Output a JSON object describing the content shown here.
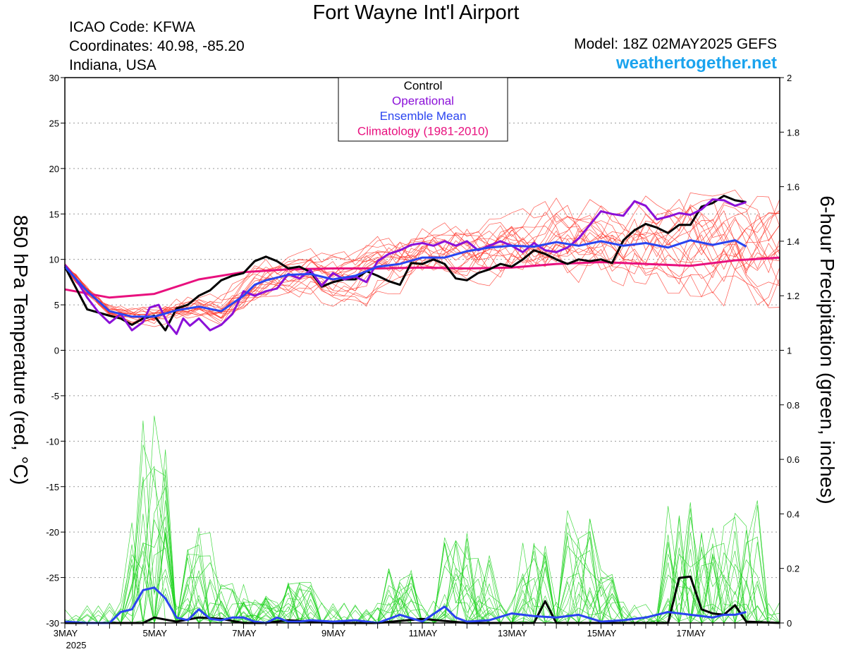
{
  "header": {
    "title": "Fort Wayne Int'l Airport",
    "icao": "ICAO Code: KFWA",
    "coords": "Coordinates: 40.98, -85.20",
    "region": "Indiana, USA",
    "model": "Model: 18Z 02MAY2025 GEFS",
    "site": "weathertogether.net"
  },
  "chart_data": {
    "type": "line",
    "x_unit": "days from 3MAY 2025 00Z",
    "xlim": [
      0,
      16
    ],
    "x_tick_labels": [
      {
        "day": 0,
        "label": "3MAY"
      },
      {
        "day": 2,
        "label": "5MAY"
      },
      {
        "day": 4,
        "label": "7MAY"
      },
      {
        "day": 6,
        "label": "9MAY"
      },
      {
        "day": 8,
        "label": "11MAY"
      },
      {
        "day": 10,
        "label": "13MAY"
      },
      {
        "day": 12,
        "label": "15MAY"
      },
      {
        "day": 14,
        "label": "17MAY"
      }
    ],
    "x_year_label": "2025",
    "ylabel_left": "850 hPa Temperature (red, °C)",
    "ylabel_right": "6-hour Precipitation (green, inches)",
    "ylim_left": [
      -30,
      30
    ],
    "ylim_right": [
      0,
      2
    ],
    "y_ticks_left": [
      30,
      25,
      20,
      15,
      10,
      5,
      0,
      -5,
      -10,
      -15,
      -20,
      -25,
      -30
    ],
    "y_ticks_right": [
      "2",
      "1.8",
      "1.6",
      "1.4",
      "1.2",
      "1",
      "0.8",
      "0.6",
      "0.4",
      "0.2",
      "0"
    ],
    "grid": "horizontal dotted",
    "legend": {
      "placement": "top-center",
      "entries": [
        {
          "label": "Control",
          "color": "#000000"
        },
        {
          "label": "Operational",
          "color": "#8b10d8"
        },
        {
          "label": "Ensemble Mean",
          "color": "#2a44f0"
        },
        {
          "label": "Climatology (1981-2010)",
          "color": "#e8107e"
        }
      ]
    },
    "colors": {
      "members_temp": "#ff3b30",
      "members_precip": "#22d422"
    },
    "series": [
      {
        "id": "control_temp",
        "color": "#000000",
        "axis": "left",
        "points": [
          [
            0,
            9.2
          ],
          [
            0.5,
            4.5
          ],
          [
            1,
            3.8
          ],
          [
            1.25,
            3.5
          ],
          [
            1.5,
            2.8
          ],
          [
            1.75,
            3.5
          ],
          [
            2,
            3.8
          ],
          [
            2.25,
            2.2
          ],
          [
            2.5,
            4.6
          ],
          [
            2.75,
            5
          ],
          [
            3,
            6
          ],
          [
            3.25,
            6.6
          ],
          [
            3.5,
            7.7
          ],
          [
            3.75,
            8.2
          ],
          [
            4,
            8.5
          ],
          [
            4.25,
            9.8
          ],
          [
            4.5,
            10.3
          ],
          [
            4.75,
            9.8
          ],
          [
            5,
            9
          ],
          [
            5.25,
            9.2
          ],
          [
            5.5,
            8.6
          ],
          [
            5.75,
            7
          ],
          [
            6,
            7.5
          ],
          [
            6.25,
            7.8
          ],
          [
            6.5,
            7.8
          ],
          [
            6.75,
            8.7
          ],
          [
            7,
            8.2
          ],
          [
            7.25,
            7.6
          ],
          [
            7.5,
            7.2
          ],
          [
            7.75,
            9.6
          ],
          [
            8,
            9.5
          ],
          [
            8.25,
            10
          ],
          [
            8.5,
            9.5
          ],
          [
            8.75,
            7.9
          ],
          [
            9,
            7.7
          ],
          [
            9.25,
            8.5
          ],
          [
            9.5,
            8.9
          ],
          [
            9.75,
            9.5
          ],
          [
            10,
            9.2
          ],
          [
            10.25,
            10
          ],
          [
            10.5,
            11
          ],
          [
            10.75,
            10.6
          ],
          [
            11,
            10
          ],
          [
            11.25,
            9.5
          ],
          [
            11.5,
            10
          ],
          [
            11.75,
            9.8
          ],
          [
            12,
            10
          ],
          [
            12.25,
            9.6
          ],
          [
            12.5,
            12.1
          ],
          [
            12.75,
            13.2
          ],
          [
            13,
            13.9
          ],
          [
            13.25,
            13.5
          ],
          [
            13.5,
            12.9
          ],
          [
            13.75,
            13.8
          ],
          [
            14,
            13.8
          ],
          [
            14.25,
            15.8
          ],
          [
            14.5,
            16.2
          ],
          [
            14.75,
            17
          ],
          [
            15,
            16.5
          ],
          [
            15.25,
            16.3
          ]
        ]
      },
      {
        "id": "operational_temp",
        "color": "#8b10d8",
        "axis": "left",
        "points": [
          [
            0,
            9.4
          ],
          [
            0.25,
            7.8
          ],
          [
            0.5,
            5.8
          ],
          [
            0.75,
            4.2
          ],
          [
            1,
            3
          ],
          [
            1.25,
            4
          ],
          [
            1.5,
            2.2
          ],
          [
            1.75,
            3.1
          ],
          [
            1.9,
            4.7
          ],
          [
            2.1,
            5
          ],
          [
            2.3,
            3
          ],
          [
            2.5,
            1.8
          ],
          [
            2.65,
            3.5
          ],
          [
            2.8,
            2.7
          ],
          [
            3,
            3.5
          ],
          [
            3.25,
            2.2
          ],
          [
            3.5,
            2.8
          ],
          [
            3.75,
            4
          ],
          [
            4,
            6.5
          ],
          [
            4.25,
            6
          ],
          [
            4.5,
            6.5
          ],
          [
            4.75,
            6.8
          ],
          [
            5,
            8.4
          ],
          [
            5.25,
            7.9
          ],
          [
            5.5,
            8.8
          ],
          [
            5.75,
            7.1
          ],
          [
            6,
            8.5
          ],
          [
            6.25,
            7.8
          ],
          [
            6.5,
            8.1
          ],
          [
            6.75,
            7.5
          ],
          [
            7,
            9.8
          ],
          [
            7.25,
            10.6
          ],
          [
            7.5,
            11
          ],
          [
            7.75,
            11.6
          ],
          [
            8,
            11.8
          ],
          [
            8.25,
            11.5
          ],
          [
            8.5,
            12
          ],
          [
            8.75,
            11.5
          ],
          [
            9,
            12
          ],
          [
            9.25,
            11
          ],
          [
            9.5,
            11.5
          ],
          [
            9.75,
            12
          ],
          [
            10,
            11.5
          ],
          [
            10.25,
            10.8
          ],
          [
            10.5,
            11.8
          ],
          [
            10.75,
            11
          ],
          [
            11,
            10.8
          ],
          [
            11.25,
            11.3
          ],
          [
            11.5,
            12.3
          ],
          [
            11.75,
            13.8
          ],
          [
            12,
            15.3
          ],
          [
            12.25,
            15
          ],
          [
            12.5,
            14.8
          ],
          [
            12.75,
            16.4
          ],
          [
            13,
            15.9
          ],
          [
            13.25,
            14.4
          ],
          [
            13.5,
            14.7
          ],
          [
            13.75,
            15.1
          ],
          [
            14,
            14.9
          ],
          [
            14.25,
            15.5
          ],
          [
            14.5,
            16.6
          ],
          [
            14.75,
            16.5
          ],
          [
            15,
            15.9
          ],
          [
            15.25,
            16.3
          ]
        ]
      },
      {
        "id": "ensemble_mean_temp",
        "color": "#2a44f0",
        "axis": "left",
        "points": [
          [
            0,
            9.2
          ],
          [
            0.5,
            6.5
          ],
          [
            1,
            4.3
          ],
          [
            1.5,
            3.7
          ],
          [
            2,
            3.7
          ],
          [
            2.5,
            4.4
          ],
          [
            3,
            4.8
          ],
          [
            3.5,
            4.3
          ],
          [
            4,
            6
          ],
          [
            4.25,
            7.2
          ],
          [
            4.5,
            7.7
          ],
          [
            5,
            8.3
          ],
          [
            5.5,
            8.4
          ],
          [
            6,
            7.8
          ],
          [
            6.5,
            8.2
          ],
          [
            7,
            9.2
          ],
          [
            7.5,
            9.5
          ],
          [
            8,
            10.2
          ],
          [
            8.5,
            10.2
          ],
          [
            9,
            10.9
          ],
          [
            9.5,
            11.3
          ],
          [
            10,
            11.5
          ],
          [
            10.5,
            11.4
          ],
          [
            11,
            11.9
          ],
          [
            11.5,
            11.5
          ],
          [
            12,
            12
          ],
          [
            12.5,
            11.5
          ],
          [
            13,
            11.8
          ],
          [
            13.5,
            11.3
          ],
          [
            14,
            12.1
          ],
          [
            14.5,
            11.6
          ],
          [
            15,
            12.1
          ],
          [
            15.25,
            11.4
          ]
        ]
      },
      {
        "id": "climatology_temp",
        "color": "#e8107e",
        "axis": "left",
        "points": [
          [
            0,
            6.7
          ],
          [
            1,
            5.8
          ],
          [
            2,
            6.2
          ],
          [
            3,
            7.8
          ],
          [
            4,
            8.6
          ],
          [
            5,
            8.9
          ],
          [
            6,
            9
          ],
          [
            7,
            9
          ],
          [
            8,
            9.1
          ],
          [
            9,
            9
          ],
          [
            10,
            9.1
          ],
          [
            11,
            9.5
          ],
          [
            12,
            9.7
          ],
          [
            13,
            9.5
          ],
          [
            14,
            9.3
          ],
          [
            15,
            9.9
          ],
          [
            16,
            10.2
          ]
        ]
      },
      {
        "id": "control_precip",
        "color": "#000000",
        "axis": "right",
        "points": [
          [
            0,
            0
          ],
          [
            1.75,
            0
          ],
          [
            2,
            0.02
          ],
          [
            2.5,
            0.005
          ],
          [
            3,
            0.02
          ],
          [
            3.5,
            0.015
          ],
          [
            4,
            0
          ],
          [
            4.5,
            0
          ],
          [
            5,
            0.01
          ],
          [
            6,
            0
          ],
          [
            7,
            0
          ],
          [
            8,
            0.015
          ],
          [
            9,
            0
          ],
          [
            10,
            0
          ],
          [
            10.5,
            0
          ],
          [
            10.75,
            0.08
          ],
          [
            11,
            0
          ],
          [
            12,
            0
          ],
          [
            13,
            0
          ],
          [
            13.5,
            0
          ],
          [
            13.75,
            0.165
          ],
          [
            14,
            0.17
          ],
          [
            14.25,
            0.05
          ],
          [
            14.5,
            0.035
          ],
          [
            14.75,
            0.03
          ],
          [
            15,
            0.065
          ],
          [
            15.25,
            0.005
          ],
          [
            16,
            0
          ]
        ]
      },
      {
        "id": "ensemble_mean_precip",
        "color": "#2a44f0",
        "axis": "right",
        "points": [
          [
            0,
            0.005
          ],
          [
            0.5,
            0
          ],
          [
            1,
            0
          ],
          [
            1.25,
            0.04
          ],
          [
            1.5,
            0.05
          ],
          [
            1.75,
            0.12
          ],
          [
            2,
            0.13
          ],
          [
            2.25,
            0.09
          ],
          [
            2.5,
            0.02
          ],
          [
            2.75,
            0.01
          ],
          [
            3,
            0.05
          ],
          [
            3.25,
            0.015
          ],
          [
            3.5,
            0.01
          ],
          [
            3.75,
            0.02
          ],
          [
            4,
            0.02
          ],
          [
            4.25,
            0.005
          ],
          [
            4.5,
            0
          ],
          [
            4.75,
            0.02
          ],
          [
            5,
            0.005
          ],
          [
            5.25,
            0.005
          ],
          [
            5.5,
            0.01
          ],
          [
            6,
            0.005
          ],
          [
            6.5,
            0.01
          ],
          [
            7,
            0
          ],
          [
            7.5,
            0.03
          ],
          [
            8,
            0.005
          ],
          [
            8.5,
            0.06
          ],
          [
            8.75,
            0.02
          ],
          [
            9,
            0.005
          ],
          [
            9.5,
            0.01
          ],
          [
            10,
            0.035
          ],
          [
            10.5,
            0.025
          ],
          [
            11,
            0.02
          ],
          [
            11.5,
            0.03
          ],
          [
            12,
            0.005
          ],
          [
            12.5,
            0.01
          ],
          [
            13,
            0.02
          ],
          [
            13.5,
            0.04
          ],
          [
            14,
            0.03
          ],
          [
            14.25,
            0.025
          ],
          [
            14.5,
            0.02
          ],
          [
            14.75,
            0.03
          ],
          [
            15,
            0.03
          ],
          [
            15.25,
            0.04
          ]
        ]
      }
    ]
  }
}
